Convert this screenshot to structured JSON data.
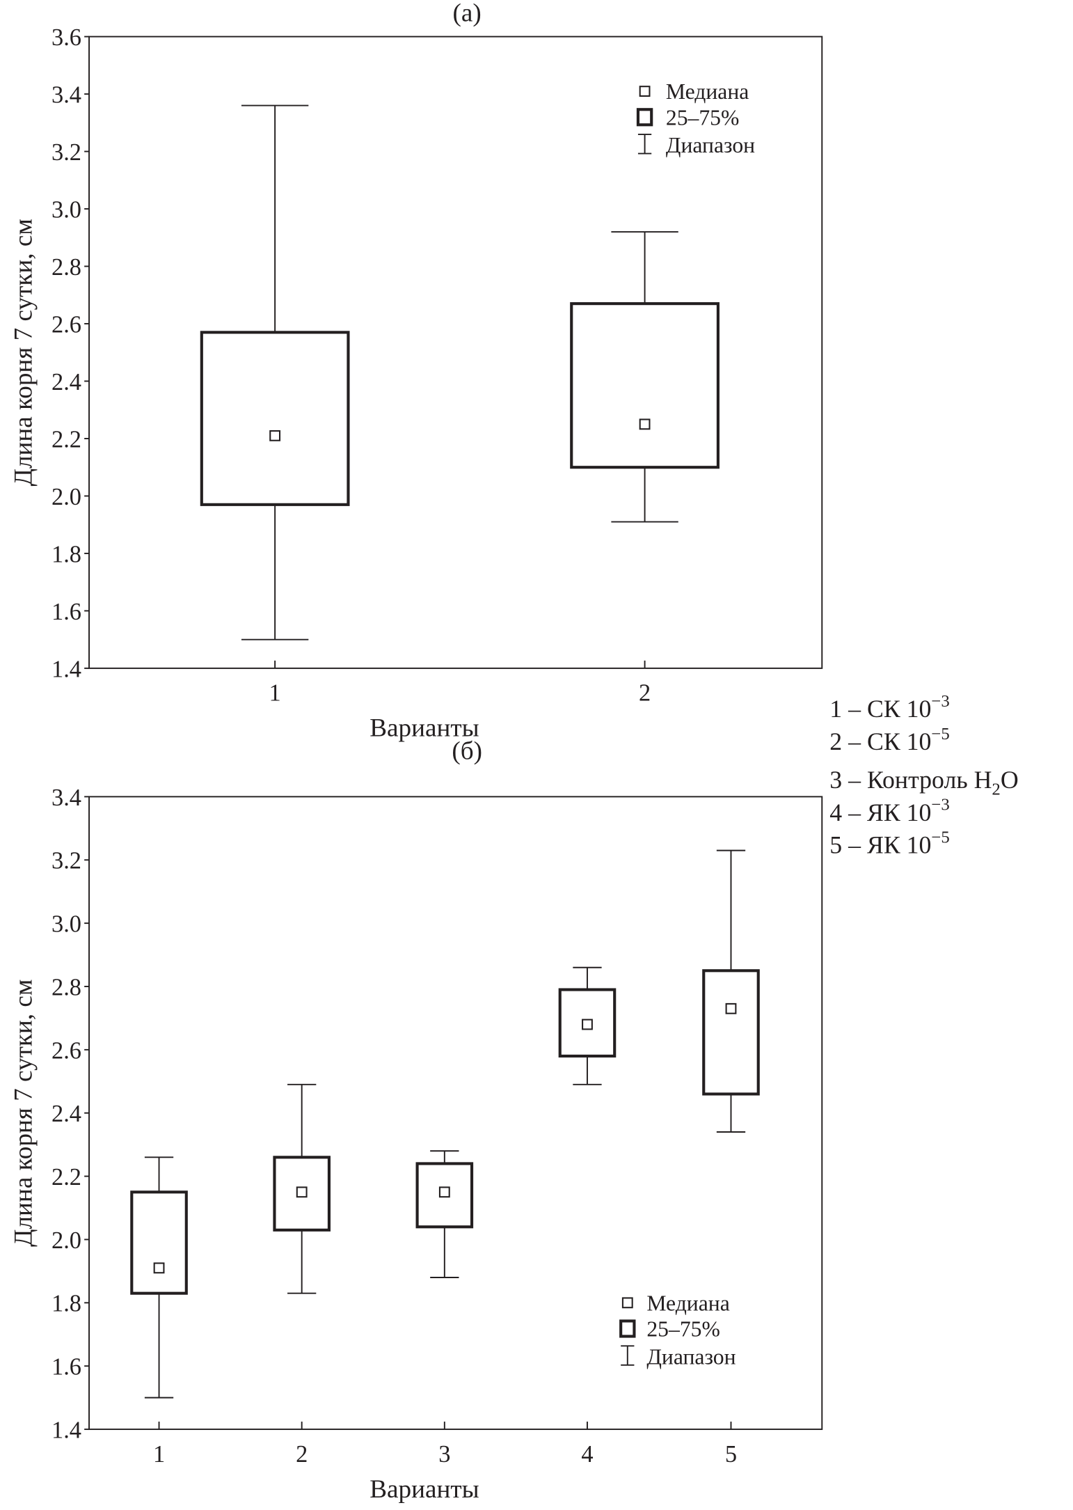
{
  "chart_data": [
    {
      "type": "boxplot",
      "title": "(а)",
      "xlabel": "Варианты",
      "ylabel": "Длина корня 7 сутки, см",
      "ylim": [
        1.4,
        3.6
      ],
      "yticks": [
        "1.4",
        "1.6",
        "1.8",
        "2.0",
        "2.2",
        "2.4",
        "2.6",
        "2.8",
        "3.0",
        "3.2",
        "3.4",
        "3.6"
      ],
      "categories": [
        "1",
        "2"
      ],
      "series": [
        {
          "category": "1",
          "min": 1.5,
          "q1": 1.97,
          "median": 2.21,
          "q3": 2.57,
          "max": 3.36
        },
        {
          "category": "2",
          "min": 1.91,
          "q1": 2.1,
          "median": 2.25,
          "q3": 2.67,
          "max": 2.92
        }
      ],
      "legend": {
        "placement": "top-right",
        "entries": [
          "Медиана",
          "25–75%",
          "Диапазон"
        ]
      }
    },
    {
      "type": "boxplot",
      "title": "(б)",
      "xlabel": "Варианты",
      "ylabel": "Длина корня 7 сутки, см",
      "ylim": [
        1.4,
        3.4
      ],
      "yticks": [
        "1.4",
        "1.6",
        "1.8",
        "2.0",
        "2.2",
        "2.4",
        "2.6",
        "2.8",
        "3.0",
        "3.2",
        "3.4"
      ],
      "categories": [
        "1",
        "2",
        "3",
        "4",
        "5"
      ],
      "series": [
        {
          "category": "1",
          "min": 1.5,
          "q1": 1.83,
          "median": 1.91,
          "q3": 2.15,
          "max": 2.26
        },
        {
          "category": "2",
          "min": 1.83,
          "q1": 2.03,
          "median": 2.15,
          "q3": 2.26,
          "max": 2.49
        },
        {
          "category": "3",
          "min": 1.88,
          "q1": 2.04,
          "median": 2.15,
          "q3": 2.24,
          "max": 2.28
        },
        {
          "category": "4",
          "min": 2.49,
          "q1": 2.58,
          "median": 2.68,
          "q3": 2.79,
          "max": 2.86
        },
        {
          "category": "5",
          "min": 2.34,
          "q1": 2.46,
          "median": 2.73,
          "q3": 2.85,
          "max": 3.23
        }
      ],
      "legend": {
        "placement": "bottom-right",
        "entries": [
          "Медиана",
          "25–75%",
          "Диапазон"
        ]
      }
    }
  ],
  "variants": [
    {
      "num": "1 –",
      "text": "СК 10",
      "sup": "−3",
      "sub": "",
      "tail": ""
    },
    {
      "num": "2 –",
      "text": "СК 10",
      "sup": "−5",
      "sub": "",
      "tail": ""
    },
    {
      "num": "3 –",
      "text": " Контроль H",
      "sup": "",
      "sub": "2",
      "tail": "O"
    },
    {
      "num": "4  –",
      "text": "ЯК 10",
      "sup": "−3",
      "sub": "",
      "tail": ""
    },
    {
      "num": "5  –",
      "text": "ЯК 10",
      "sup": "−5",
      "sub": "",
      "tail": ""
    }
  ]
}
